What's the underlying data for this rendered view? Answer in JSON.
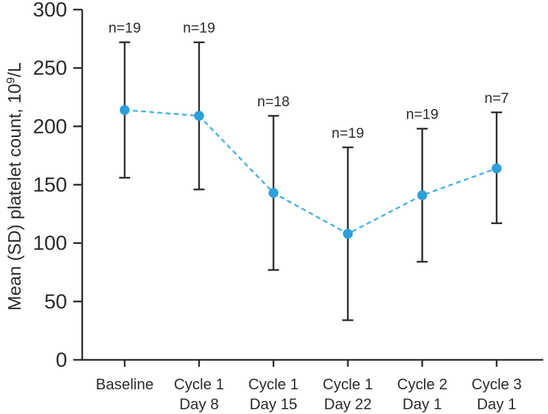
{
  "chart_data": {
    "type": "line",
    "title": "",
    "xlabel": "",
    "ylabel_prefix": "Mean (SD) platelet count, 10",
    "ylabel_sup": "9",
    "ylabel_suffix": "/L",
    "ylim": [
      0,
      300
    ],
    "yticks": [
      0,
      50,
      100,
      150,
      200,
      250,
      300
    ],
    "grid": false,
    "legend": "none",
    "line_style": "dashed",
    "categories": [
      {
        "line1": "Baseline",
        "line2": ""
      },
      {
        "line1": "Cycle 1",
        "line2": "Day 8"
      },
      {
        "line1": "Cycle 1",
        "line2": "Day 15"
      },
      {
        "line1": "Cycle 1",
        "line2": "Day 22"
      },
      {
        "line1": "Cycle 2",
        "line2": "Day 1"
      },
      {
        "line1": "Cycle 3",
        "line2": "Day 1"
      }
    ],
    "series": [
      {
        "name": "Mean (SD) platelet count",
        "means": [
          214,
          209,
          143,
          108,
          141,
          164
        ],
        "upper": [
          272,
          272,
          209,
          182,
          198,
          212
        ],
        "lower": [
          156,
          146,
          77,
          34,
          84,
          117
        ],
        "n_labels": [
          "n=19",
          "n=19",
          "n=18",
          "n=19",
          "n=19",
          "n=7"
        ]
      }
    ],
    "colors": {
      "marker": "#2ba0da",
      "line": "#44b1e4",
      "error_bar": "#2b2b2b",
      "axis": "#2b2b2b",
      "text": "#2b2b2b"
    }
  }
}
